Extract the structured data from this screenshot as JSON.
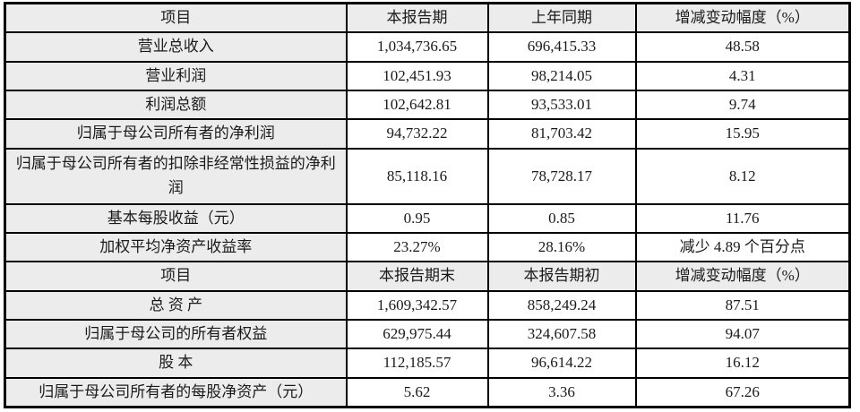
{
  "colors": {
    "header_bg": "#ececec",
    "item_column_bg": "#ececec",
    "border": "#000000",
    "text": "#1a1a1a",
    "page_bg": "#ffffff"
  },
  "table": {
    "header_row_1": [
      "项目",
      "本报告期",
      "上年同期",
      "增减变动幅度（%）"
    ],
    "rows_1": [
      [
        "营业总收入",
        "1,034,736.65",
        "696,415.33",
        "48.58"
      ],
      [
        "营业利润",
        "102,451.93",
        "98,214.05",
        "4.31"
      ],
      [
        "利润总额",
        "102,642.81",
        "93,533.01",
        "9.74"
      ],
      [
        "归属于母公司所有者的净利润",
        "94,732.22",
        "81,703.42",
        "15.95"
      ],
      [
        "归属于母公司所有者的扣除非经常性损益的净利润",
        "85,118.16",
        "78,728.17",
        "8.12"
      ],
      [
        "基本每股收益（元）",
        "0.95",
        "0.85",
        "11.76"
      ],
      [
        "加权平均净资产收益率",
        "23.27%",
        "28.16%",
        "减少 4.89 个百分点"
      ]
    ],
    "header_row_2": [
      "项目",
      "本报告期末",
      "本报告期初",
      "增减变动幅度（%）"
    ],
    "rows_2": [
      [
        "总 资 产",
        "1,609,342.57",
        "858,249.24",
        "87.51"
      ],
      [
        "归属于母公司的所有者权益",
        "629,975.44",
        "324,607.58",
        "94.07"
      ],
      [
        "股 本",
        "112,185.57",
        "96,614.22",
        "16.12"
      ],
      [
        "归属于母公司所有者的每股净资产（元）",
        "5.62",
        "3.36",
        "67.26"
      ]
    ]
  }
}
